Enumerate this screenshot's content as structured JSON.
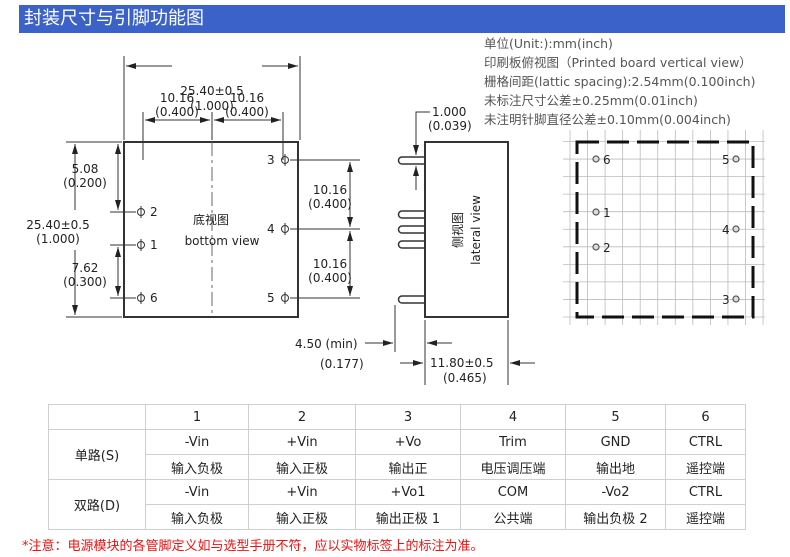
{
  "header": {
    "title": "封装尺寸与引脚功能图",
    "color": "#3a62c9"
  },
  "notes": [
    "单位(Unit:):mm(inch)",
    "印刷板俯视图（Printed board vertical view）",
    "栅格间距(lattic spacing):2.54mm(0.100inch)",
    "未标注尺寸公差±0.25mm(0.01inch)",
    "未注明针脚直径公差±0.10mm(0.004inch)"
  ],
  "bottom_view": {
    "label_cn": "底视图",
    "label_en": "bottom view",
    "width_mm": "25.40±0.5",
    "width_in": "(1.000)",
    "pitch_mm": "10.16",
    "pitch_in": "(0.400)",
    "left_top_mm": "5.08",
    "left_top_in": "(0.200)",
    "height_mm": "25.40±0.5",
    "height_in": "(1.000)",
    "left_bottom_mm": "7.62",
    "left_bottom_in": "(0.300)",
    "pins": [
      "1",
      "2",
      "3",
      "4",
      "5",
      "6"
    ]
  },
  "side_view": {
    "label_cn": "侧视图",
    "label_en": "lateral view",
    "pin_mm": "1.000",
    "pin_in": "(0.039)",
    "pin_len_mm": "4.50 (min)",
    "pin_len_in": "(0.177)",
    "depth_mm": "11.80±0.5",
    "depth_in": "(0.465)"
  },
  "pcb_view": {
    "pins": [
      "1",
      "2",
      "3",
      "4",
      "5",
      "6"
    ]
  },
  "pin_table": {
    "headers": [
      "1",
      "2",
      "3",
      "4",
      "5",
      "6"
    ],
    "single": {
      "label": "单路(S)",
      "names": [
        "-Vin",
        "+Vin",
        "+Vo",
        "Trim",
        "GND",
        "CTRL"
      ],
      "desc": [
        "输入负极",
        "输入正极",
        "输出正",
        "电压调压端",
        "输出地",
        "遥控端"
      ]
    },
    "dual": {
      "label": "双路(D)",
      "names": [
        "-Vin",
        "+Vin",
        "+Vo1",
        "COM",
        "-Vo2",
        "CTRL"
      ],
      "desc": [
        "输入负极",
        "输入正极",
        "输出正极 1",
        "公共端",
        "输出负极 2",
        "遥控端"
      ]
    }
  },
  "footnote": "*注意：电源模块的各管脚定义如与选型手册不符，应以实物标签上的标注为准。",
  "footnote_color": "#f01010"
}
